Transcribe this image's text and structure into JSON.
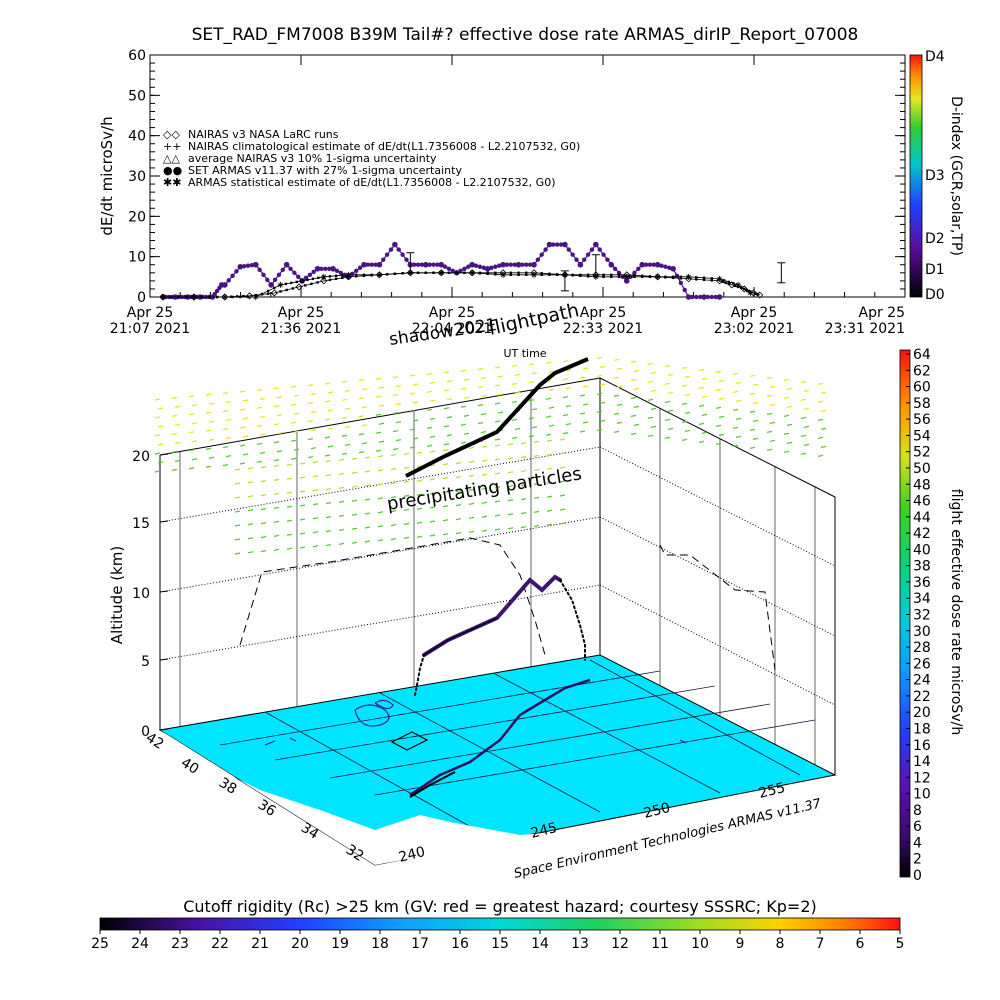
{
  "title": "SET_RAD_FM7008  B39M Tail#? effective dose rate ARMAS_dirIP_Report_07008",
  "chart_data": [
    {
      "type": "scatter",
      "title": "SET_RAD_FM7008  B39M Tail#? effective dose rate ARMAS_dirIP_Report_07008",
      "xlabel": "UT time",
      "ylabel": "dE/dt microSv/h",
      "ylim": [
        0,
        60
      ],
      "yticks": [
        0,
        10,
        20,
        30,
        40,
        50,
        60
      ],
      "xticks": [
        {
          "top": "Apr 25",
          "bottom": "21:07  2021"
        },
        {
          "top": "Apr 25",
          "bottom": "21:36  2021"
        },
        {
          "top": "Apr 25",
          "bottom": "22:04  2021"
        },
        {
          "top": "Apr 25",
          "bottom": "22:33  2021"
        },
        {
          "top": "Apr 25",
          "bottom": "23:02  2021"
        },
        {
          "top": "Apr 25",
          "bottom": "23:31  2021"
        }
      ],
      "legend": [
        {
          "marker": "◇◇",
          "label": "NAIRAS v3 NASA LaRC runs"
        },
        {
          "marker": "++",
          "label": "NAIRAS climatological estimate of dE/dt(L1.7356008 - L2.2107532, G0)"
        },
        {
          "marker": "△△",
          "label": "average NAIRAS v3 10% 1-sigma uncertainty"
        },
        {
          "marker": "●●",
          "label": "SET ARMAS v11.37 with 27% 1-sigma uncertainty"
        },
        {
          "marker": "✱✱",
          "label": "ARMAS statistical estimate of dE/dt(L1.7356008 - L2.2107532, G0)"
        }
      ],
      "legend_placement": "upper-left",
      "series": [
        {
          "name": "SET ARMAS v11.37 with 27% 1-sigma uncertainty",
          "x": [
            0,
            4,
            8,
            12,
            16,
            19,
            20,
            25,
            30,
            35,
            40,
            45,
            50,
            55,
            60,
            65,
            70,
            75,
            80,
            85,
            90,
            95,
            100,
            105,
            110,
            115,
            120,
            125,
            130,
            135,
            140,
            145,
            150,
            155,
            160,
            165,
            170,
            175,
            180
          ],
          "y": [
            0,
            0,
            0,
            0,
            0,
            3,
            3,
            7.5,
            8,
            3,
            8,
            4,
            7,
            7,
            5,
            8,
            8,
            13,
            8,
            8,
            8,
            6,
            8,
            7,
            8,
            8,
            8,
            13,
            13,
            8,
            13,
            8,
            4,
            8,
            8,
            7,
            0,
            0,
            0
          ]
        },
        {
          "name": "NAIRAS v3 NASA LaRC runs",
          "x": [
            0,
            10,
            20,
            28,
            36,
            44,
            52,
            60,
            70,
            80,
            90,
            100,
            110,
            120,
            130,
            140,
            150,
            160,
            170,
            180,
            184,
            188,
            191,
            193
          ],
          "y": [
            0,
            0,
            0,
            0.3,
            1,
            2.5,
            4,
            5,
            5.5,
            6,
            6,
            6,
            6,
            6,
            5.5,
            5.5,
            5.5,
            5,
            4.5,
            4,
            3,
            2,
            1,
            0.5
          ]
        },
        {
          "name": "ARMAS statistical estimate of dE/dt(L1.7356008 - L2.2107532, G0)",
          "x": [
            0,
            10,
            20,
            30,
            38,
            45,
            52,
            60,
            70,
            80,
            90,
            100,
            110,
            120,
            130,
            140,
            150,
            160,
            170,
            180,
            186,
            190
          ],
          "y": [
            0,
            0,
            0,
            0,
            3,
            4,
            5,
            5.5,
            5.5,
            6,
            6,
            6,
            5.5,
            5.5,
            5.5,
            5,
            5,
            5,
            5,
            4.5,
            3,
            1
          ]
        }
      ]
    },
    {
      "type": "scatter",
      "xlabel": "",
      "ylabel": "Altitude (km)",
      "zticks": [
        0,
        5,
        10,
        15,
        20
      ],
      "lat_ticks": [
        32,
        34,
        36,
        38,
        40,
        42
      ],
      "lon_ticks": [
        240,
        245,
        250,
        255
      ],
      "annotations": [
        "shadow2021",
        "flightpath",
        "precipitating particles",
        "UT time"
      ],
      "footer": "Space Environment Technologies ARMAS v11.37",
      "series": [
        {
          "name": "flightpath",
          "description_values": "altitude profile",
          "x": [
            0,
            1,
            2,
            3,
            4
          ],
          "y": [
            5.5,
            8,
            10.5,
            11.5,
            4.5
          ]
        }
      ]
    }
  ],
  "right_axis_top": {
    "label": "D-index (GCR,solar,TP)",
    "ticks": [
      "D0",
      "D1",
      "D2",
      "D3",
      "D4"
    ]
  },
  "right_colorbar": {
    "label": "flight effective dose rate microSv/h",
    "ticks": [
      "0",
      "2",
      "4",
      "6",
      "8",
      "10",
      "12",
      "14",
      "16",
      "18",
      "20",
      "22",
      "24",
      "26",
      "28",
      "30",
      "32",
      "34",
      "36",
      "38",
      "40",
      "42",
      "44",
      "46",
      "48",
      "50",
      "52",
      "54",
      "56",
      "58",
      "60",
      "62",
      "64"
    ]
  },
  "bottom_colorbar": {
    "title": "Cutoff rigidity (Rc) >25 km (GV: red = greatest hazard; courtesy SSSRC; Kp=2)",
    "ticks": [
      "25",
      "24",
      "23",
      "22",
      "21",
      "20",
      "19",
      "18",
      "17",
      "16",
      "15",
      "14",
      "13",
      "12",
      "11",
      "10",
      "9",
      "8",
      "7",
      "6",
      "5"
    ]
  },
  "colors": {
    "purple_series": "#4a1486",
    "ground": "#00e5ff",
    "mesh": "#e6e619",
    "mesh_low": "#55cc33",
    "track_3d": "#3b1670"
  }
}
